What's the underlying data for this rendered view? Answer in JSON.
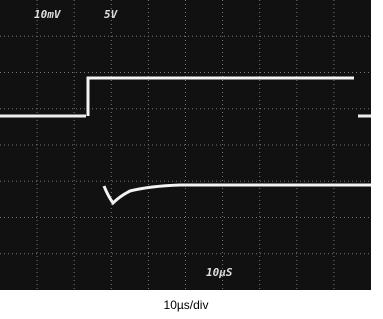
{
  "screen": {
    "channel_1_scale": "10mV",
    "channel_2_scale": "5V",
    "time_readout": "10µS"
  },
  "caption": "10µs/div"
}
